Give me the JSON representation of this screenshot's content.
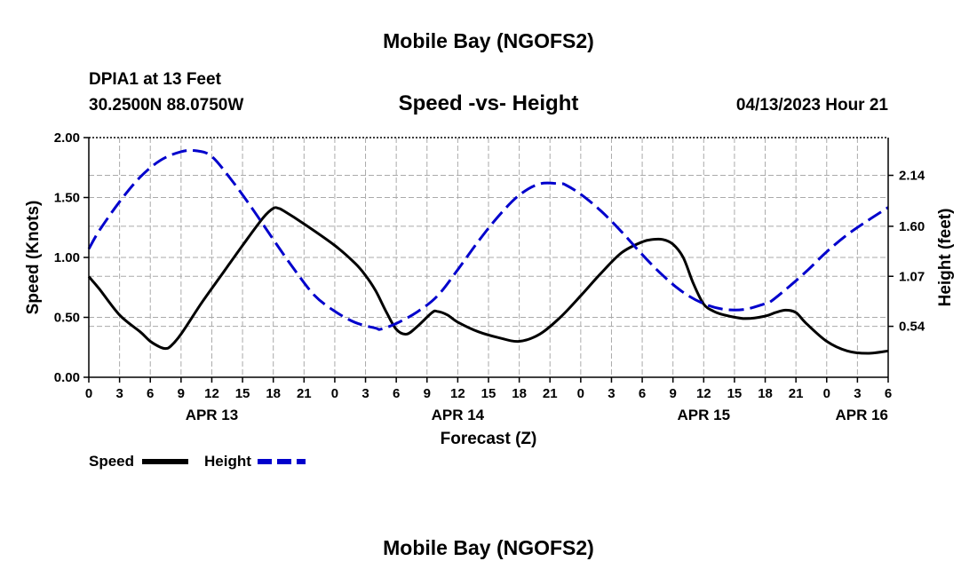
{
  "header": {
    "title": "Mobile Bay (NGOFS2)",
    "footer_title": "Mobile Bay (NGOFS2)",
    "station": "DPIA1 at 13 Feet",
    "coords": "30.2500N  88.0750W",
    "timestamp": "04/13/2023 Hour 21"
  },
  "colors": {
    "speed": "#000000",
    "height": "#0000cc",
    "grid": "#aaaaaa"
  },
  "chart_data": {
    "type": "line",
    "title": "Speed -vs- Height",
    "xlabel": "Forecast (Z)",
    "ylabel": "Speed (Knots)",
    "y2label": "Height (feet)",
    "x_unit": "hours from APR 13 00Z",
    "xlim": [
      0,
      78
    ],
    "ylim": [
      0,
      2.0
    ],
    "y2lim": [
      0,
      2.54
    ],
    "x_ticks": [
      0,
      3,
      6,
      9,
      12,
      15,
      18,
      21,
      24,
      27,
      30,
      33,
      36,
      39,
      42,
      45,
      48,
      51,
      54,
      57,
      60,
      63,
      66,
      69,
      72,
      75,
      78
    ],
    "x_tick_labels": [
      "0",
      "3",
      "6",
      "9",
      "12",
      "15",
      "18",
      "21",
      "0",
      "3",
      "6",
      "9",
      "12",
      "15",
      "18",
      "21",
      "0",
      "3",
      "6",
      "9",
      "12",
      "15",
      "18",
      "21",
      "0",
      "3",
      "6"
    ],
    "date_labels": [
      {
        "x": 12,
        "label": "APR 13"
      },
      {
        "x": 36,
        "label": "APR 14"
      },
      {
        "x": 60,
        "label": "APR 15"
      },
      {
        "x": 78,
        "label": "APR 16"
      }
    ],
    "y_ticks": [
      0,
      0.5,
      1.0,
      1.5,
      2.0
    ],
    "y_tick_labels": [
      "0.00",
      "0.50",
      "1.00",
      "1.50",
      "2.00"
    ],
    "y2_ticks": [
      0.54,
      1.07,
      1.6,
      2.14
    ],
    "y2_tick_labels": [
      "0.54",
      "1.07",
      "1.60",
      "2.14"
    ],
    "grid": true,
    "legend_position": "bottom-left",
    "series": [
      {
        "name": "Speed",
        "axis": "left",
        "style": "solid",
        "x": [
          0,
          1,
          3,
          5,
          6,
          7,
          7.5,
          8,
          9,
          11,
          13,
          15,
          17,
          18,
          18.5,
          19,
          21,
          24,
          26,
          27,
          28,
          29,
          30,
          31,
          32,
          33.5,
          34,
          35,
          36,
          38,
          40,
          42,
          44,
          46,
          48,
          50,
          52,
          54,
          55,
          56,
          57,
          58,
          59,
          60,
          61,
          62,
          64,
          66,
          67,
          68,
          69,
          70,
          72,
          74,
          76,
          78
        ],
        "values": [
          0.84,
          0.74,
          0.52,
          0.38,
          0.3,
          0.25,
          0.24,
          0.26,
          0.36,
          0.62,
          0.86,
          1.1,
          1.33,
          1.41,
          1.41,
          1.39,
          1.28,
          1.1,
          0.95,
          0.85,
          0.72,
          0.55,
          0.4,
          0.36,
          0.42,
          0.54,
          0.55,
          0.52,
          0.46,
          0.38,
          0.33,
          0.3,
          0.36,
          0.5,
          0.68,
          0.87,
          1.04,
          1.13,
          1.15,
          1.15,
          1.11,
          1.0,
          0.78,
          0.61,
          0.55,
          0.52,
          0.49,
          0.51,
          0.54,
          0.56,
          0.54,
          0.45,
          0.3,
          0.22,
          0.2,
          0.22
        ]
      },
      {
        "name": "Height",
        "axis": "right",
        "style": "dashed",
        "x": [
          0,
          1,
          3,
          5,
          7,
          9,
          10.5,
          12,
          14,
          16,
          18,
          20,
          22,
          24,
          26,
          28,
          28.5,
          30,
          32,
          34,
          36,
          38,
          40,
          42,
          44,
          46,
          46.5,
          48,
          50,
          52,
          54,
          56,
          58,
          60,
          62,
          64,
          66,
          66.5,
          68,
          70,
          72,
          74,
          76,
          78
        ],
        "values": [
          1.36,
          1.55,
          1.86,
          2.12,
          2.3,
          2.39,
          2.4,
          2.34,
          2.08,
          1.78,
          1.46,
          1.15,
          0.87,
          0.7,
          0.58,
          0.52,
          0.51,
          0.57,
          0.69,
          0.86,
          1.14,
          1.44,
          1.71,
          1.93,
          2.05,
          2.05,
          2.04,
          1.94,
          1.76,
          1.54,
          1.3,
          1.08,
          0.9,
          0.78,
          0.72,
          0.72,
          0.78,
          0.8,
          0.93,
          1.12,
          1.33,
          1.51,
          1.66,
          1.8
        ]
      }
    ]
  }
}
